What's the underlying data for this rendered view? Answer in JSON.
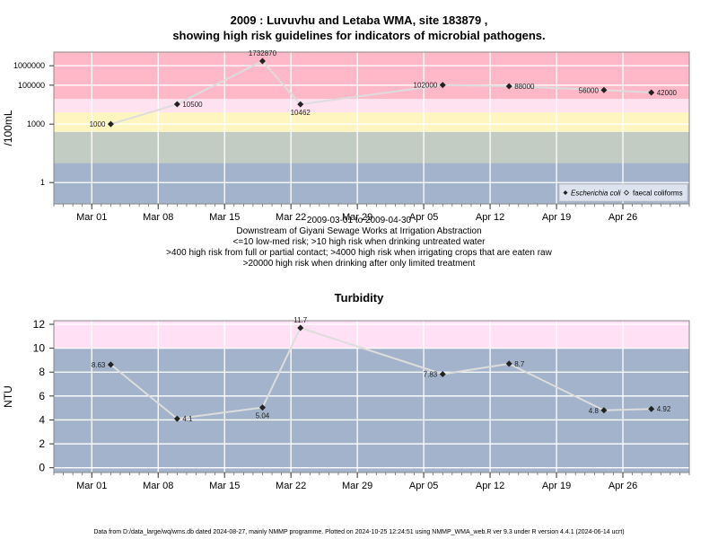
{
  "page": {
    "title_line1": "2009 : Luvuvhu and Letaba WMA, site 183879 ,",
    "title_line2": "showing high risk guidelines for indicators of microbial pathogens.",
    "caption": [
      "2009-03-01 to 2009-04-30",
      "Downstream of Giyani Sewage Works at Irrigation Abstraction",
      "<=10 low-med risk; >10 high risk when drinking untreated water",
      ">400 high risk from full or partial contact; >4000 high risk when irrigating crops that are eaten raw",
      ">20000 high risk when drinking after only limited treatment"
    ],
    "turbidity_title": "Turbidity",
    "footer": "Data from D:/data_large/wq/wms.db dated 2024-08-27, mainly NMMP programme. Plotted on 2024-10-25 12:24:51 using NMMP_WMA_web.R ver 9.3 under R version 4.4.1 (2024-06-14 ucrt)"
  },
  "chart_data": [
    {
      "type": "line",
      "ylabel": "/100mL",
      "y_scale": "log10",
      "ylim": [
        0.08,
        5000000
      ],
      "xlim": [
        "2009-02-25",
        "2009-05-03"
      ],
      "x_ticks": [
        {
          "date": "2009-03-01",
          "label": "Mar 01"
        },
        {
          "date": "2009-03-08",
          "label": "Mar 08"
        },
        {
          "date": "2009-03-15",
          "label": "Mar 15"
        },
        {
          "date": "2009-03-22",
          "label": "Mar 22"
        },
        {
          "date": "2009-03-29",
          "label": "Mar 29"
        },
        {
          "date": "2009-04-05",
          "label": "Apr 05"
        },
        {
          "date": "2009-04-12",
          "label": "Apr 12"
        },
        {
          "date": "2009-04-19",
          "label": "Apr 19"
        },
        {
          "date": "2009-04-26",
          "label": "Apr 26"
        }
      ],
      "y_ticks": [
        {
          "value": 1,
          "label": "1"
        },
        {
          "value": 1000,
          "label": "1000"
        },
        {
          "value": 100000,
          "label": "100000"
        },
        {
          "value": 1000000,
          "label": "1000000"
        }
      ],
      "grid": true,
      "bands": [
        {
          "from": 0.08,
          "to": 10,
          "color": "#a3b3cc"
        },
        {
          "from": 10,
          "to": 400,
          "color": "#c3ccc2"
        },
        {
          "from": 400,
          "to": 4000,
          "color": "#fff5c0"
        },
        {
          "from": 4000,
          "to": 20000,
          "color": "#ffe2f0"
        },
        {
          "from": 20000,
          "to": 5000000,
          "color": "#ffb8c8"
        }
      ],
      "series": [
        {
          "name": "Escherichia coli",
          "color": "#dddddd",
          "points": [
            {
              "date": "2009-03-03",
              "value": 1000,
              "label": "1000",
              "label_pos": "left"
            },
            {
              "date": "2009-03-10",
              "value": 10500,
              "label": "10500",
              "label_pos": "right"
            },
            {
              "date": "2009-03-19",
              "value": 1732870,
              "label": "1732870",
              "label_pos": "above"
            },
            {
              "date": "2009-03-23",
              "value": 10462,
              "label": "10462",
              "label_pos": "below"
            },
            {
              "date": "2009-04-07",
              "value": 102000,
              "label": "102000",
              "label_pos": "left"
            },
            {
              "date": "2009-04-14",
              "value": 88000,
              "label": "88000",
              "label_pos": "right"
            },
            {
              "date": "2009-04-24",
              "value": 56000,
              "label": "56000",
              "label_pos": "left"
            },
            {
              "date": "2009-04-29",
              "value": 42000,
              "label": "42000",
              "label_pos": "right"
            }
          ]
        },
        {
          "name": "faecal coliforms",
          "color": "#dddddd",
          "points": []
        }
      ],
      "legend": {
        "position": "bottom-right",
        "entries": [
          "Escherichia coli",
          "faecal coliforms"
        ]
      }
    },
    {
      "type": "line",
      "title": "Turbidity",
      "ylabel": "NTU",
      "ylim": [
        -0.4,
        12.3
      ],
      "xlim": [
        "2009-02-25",
        "2009-05-03"
      ],
      "x_ticks": [
        {
          "date": "2009-03-01",
          "label": "Mar 01"
        },
        {
          "date": "2009-03-08",
          "label": "Mar 08"
        },
        {
          "date": "2009-03-15",
          "label": "Mar 15"
        },
        {
          "date": "2009-03-22",
          "label": "Mar 22"
        },
        {
          "date": "2009-03-29",
          "label": "Mar 29"
        },
        {
          "date": "2009-04-05",
          "label": "Apr 05"
        },
        {
          "date": "2009-04-12",
          "label": "Apr 12"
        },
        {
          "date": "2009-04-19",
          "label": "Apr 19"
        },
        {
          "date": "2009-04-26",
          "label": "Apr 26"
        }
      ],
      "y_ticks": [
        {
          "value": 0,
          "label": "0"
        },
        {
          "value": 2,
          "label": "2"
        },
        {
          "value": 4,
          "label": "4"
        },
        {
          "value": 6,
          "label": "6"
        },
        {
          "value": 8,
          "label": "8"
        },
        {
          "value": 10,
          "label": "10"
        },
        {
          "value": 12,
          "label": "12"
        }
      ],
      "grid": true,
      "bands": [
        {
          "from": -0.4,
          "to": 10,
          "color": "#a3b3cc"
        },
        {
          "from": 10,
          "to": 12.3,
          "color": "#ffe0f5"
        }
      ],
      "series": [
        {
          "color": "#dddddd",
          "points": [
            {
              "date": "2009-03-03",
              "value": 8.63,
              "label": "8.63",
              "label_pos": "left"
            },
            {
              "date": "2009-03-10",
              "value": 4.1,
              "label": "4.1",
              "label_pos": "right"
            },
            {
              "date": "2009-03-19",
              "value": 5.04,
              "label": "5.04",
              "label_pos": "below"
            },
            {
              "date": "2009-03-23",
              "value": 11.7,
              "label": "11.7",
              "label_pos": "above"
            },
            {
              "date": "2009-04-07",
              "value": 7.83,
              "label": "7.83",
              "label_pos": "left"
            },
            {
              "date": "2009-04-14",
              "value": 8.7,
              "label": "8.7",
              "label_pos": "right"
            },
            {
              "date": "2009-04-24",
              "value": 4.8,
              "label": "4.8",
              "label_pos": "left"
            },
            {
              "date": "2009-04-29",
              "value": 4.92,
              "label": "4.92",
              "label_pos": "right"
            }
          ]
        }
      ]
    }
  ]
}
